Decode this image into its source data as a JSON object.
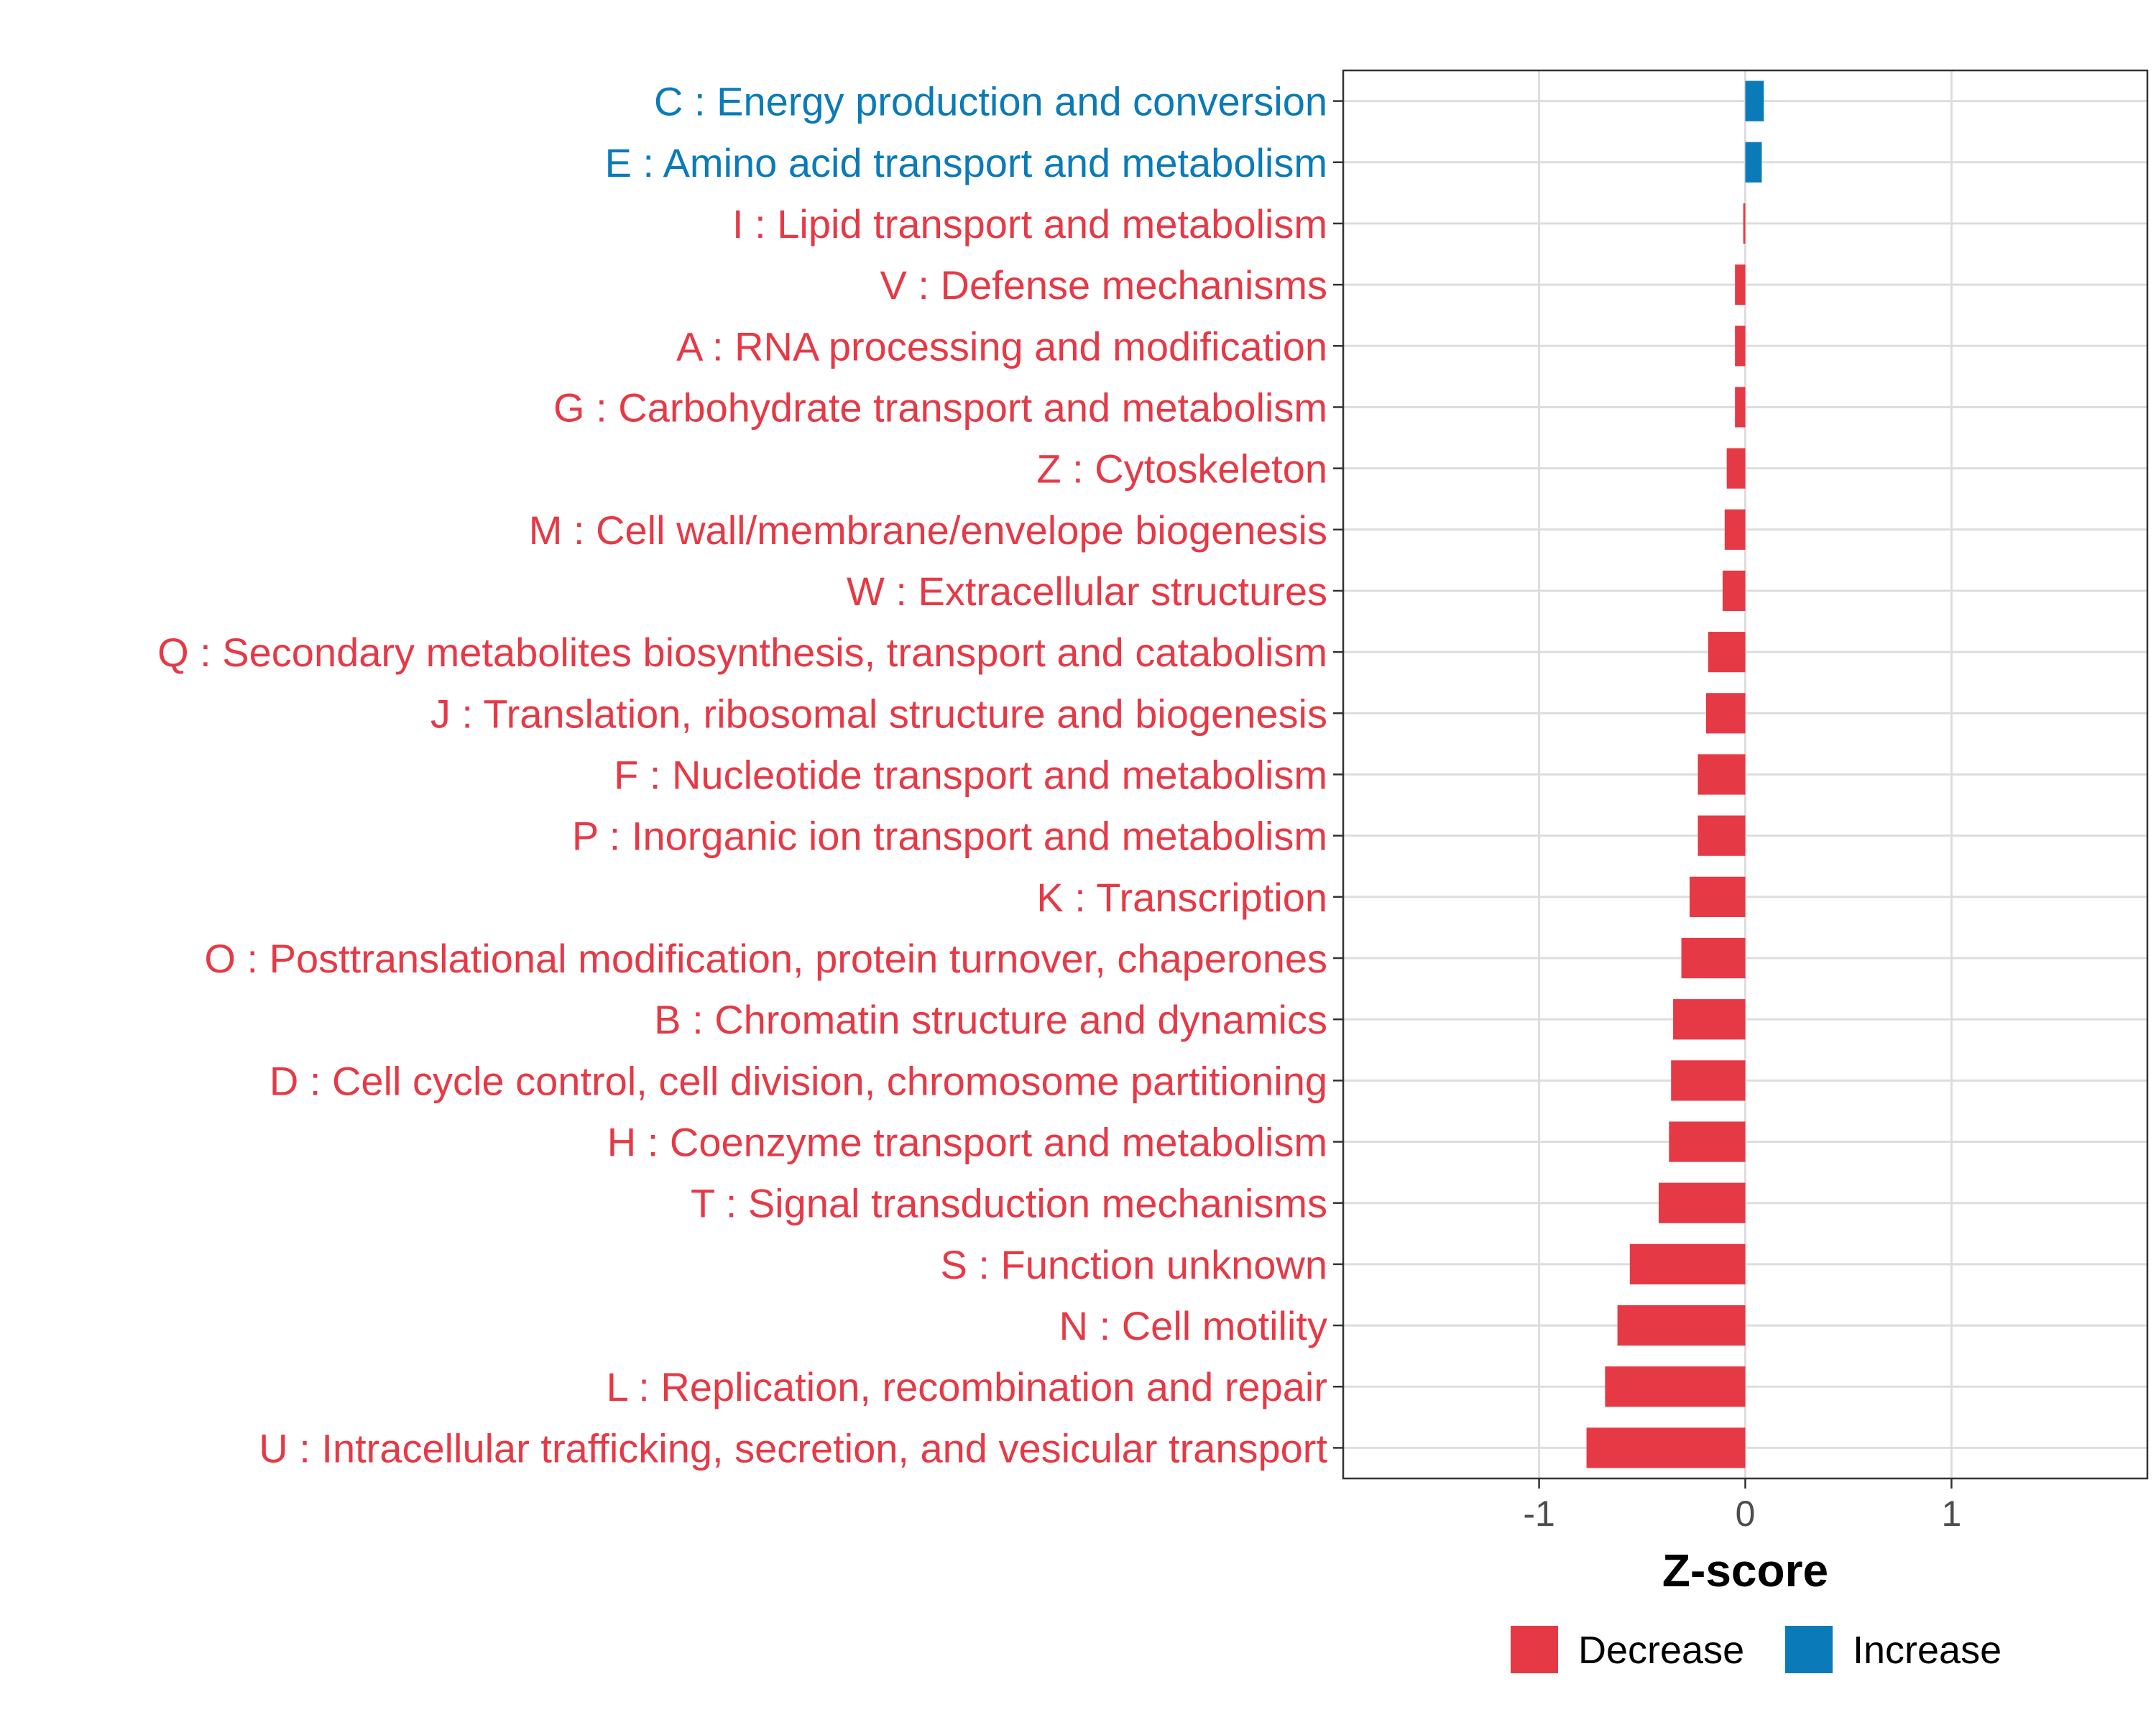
{
  "chart_data": {
    "type": "bar",
    "orientation": "horizontal",
    "xlabel": "Z-score",
    "ylabel": "",
    "xlim": [
      -1.95,
      1.95
    ],
    "xticks": [
      -1,
      0,
      1
    ],
    "xtick_labels": [
      "-1",
      "0",
      "1"
    ],
    "grid": true,
    "legend": {
      "placement": "bottom",
      "entries": [
        {
          "name": "Decrease",
          "color": "#E63946"
        },
        {
          "name": "Increase",
          "color": "#0A7BB8"
        }
      ]
    },
    "categories": [
      "C : Energy production and conversion",
      "E : Amino acid transport and metabolism",
      "I : Lipid transport and metabolism",
      "V : Defense mechanisms",
      "A : RNA processing and modification",
      "G : Carbohydrate transport and metabolism",
      "Z : Cytoskeleton",
      "M : Cell wall/membrane/envelope biogenesis",
      "W : Extracellular structures",
      "Q : Secondary metabolites biosynthesis, transport and catabolism",
      "J : Translation, ribosomal structure and biogenesis",
      "F : Nucleotide transport and metabolism",
      "P : Inorganic ion transport and metabolism",
      "K : Transcription",
      "O : Posttranslational modification, protein turnover, chaperones",
      "B : Chromatin structure and dynamics",
      "D : Cell cycle control, cell division, chromosome partitioning",
      "H : Coenzyme transport and metabolism",
      "T : Signal transduction mechanisms",
      "S : Function unknown",
      "N : Cell motility",
      "L : Replication, recombination and repair",
      "U : Intracellular trafficking, secretion, and vesicular transport"
    ],
    "values": [
      0.09,
      0.08,
      -0.01,
      -0.05,
      -0.05,
      -0.05,
      -0.09,
      -0.1,
      -0.11,
      -0.18,
      -0.19,
      -0.23,
      -0.23,
      -0.27,
      -0.31,
      -0.35,
      -0.36,
      -0.37,
      -0.42,
      -0.56,
      -0.62,
      -0.68,
      -0.77
    ],
    "groups": [
      "Increase",
      "Increase",
      "Decrease",
      "Decrease",
      "Decrease",
      "Decrease",
      "Decrease",
      "Decrease",
      "Decrease",
      "Decrease",
      "Decrease",
      "Decrease",
      "Decrease",
      "Decrease",
      "Decrease",
      "Decrease",
      "Decrease",
      "Decrease",
      "Decrease",
      "Decrease",
      "Decrease",
      "Decrease",
      "Decrease"
    ]
  }
}
